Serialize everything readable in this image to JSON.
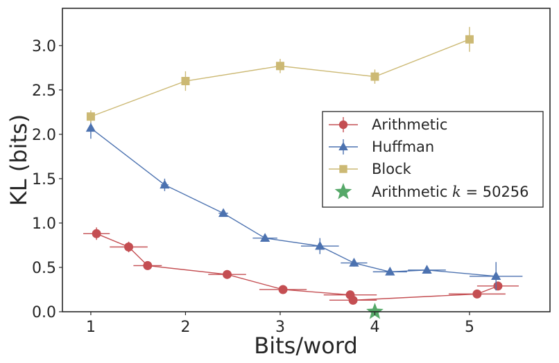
{
  "chart_data": {
    "type": "line",
    "xlabel": "Bits/word",
    "ylabel": "KL (bits)",
    "xlim": [
      0.7,
      5.85
    ],
    "ylim": [
      0.0,
      3.42
    ],
    "xticks": [
      1,
      2,
      3,
      4,
      5
    ],
    "yticks": [
      0.0,
      0.5,
      1.0,
      1.5,
      2.0,
      2.5,
      3.0
    ],
    "xtick_labels": [
      "1",
      "2",
      "3",
      "4",
      "5"
    ],
    "ytick_labels": [
      "0.0",
      "0.5",
      "1.0",
      "1.5",
      "2.0",
      "2.5",
      "3.0"
    ],
    "grid": false,
    "legend_position": "center-right",
    "series": [
      {
        "name": "Arithmetic",
        "color": "#c44e52",
        "marker": "circle",
        "points": [
          {
            "x": 1.06,
            "y": 0.88,
            "xerr": 0.14,
            "yerr": 0.07
          },
          {
            "x": 1.4,
            "y": 0.73,
            "xerr": 0.2,
            "yerr": 0.06
          },
          {
            "x": 1.6,
            "y": 0.52,
            "xerr": 0.15,
            "yerr": 0.03
          },
          {
            "x": 2.44,
            "y": 0.42,
            "xerr": 0.2,
            "yerr": 0.03
          },
          {
            "x": 3.03,
            "y": 0.25,
            "xerr": 0.25,
            "yerr": 0.02
          },
          {
            "x": 3.74,
            "y": 0.19,
            "xerr": 0.28,
            "yerr": 0.03
          },
          {
            "x": 3.77,
            "y": 0.13,
            "xerr": 0.25,
            "yerr": 0.02
          },
          {
            "x": 5.08,
            "y": 0.2,
            "xerr": 0.3,
            "yerr": 0.02
          },
          {
            "x": 5.3,
            "y": 0.29,
            "xerr": 0.22,
            "yerr": 0.02
          }
        ]
      },
      {
        "name": "Huffman",
        "color": "#4c72b0",
        "marker": "triangle",
        "points": [
          {
            "x": 1.0,
            "y": 2.07,
            "xerr": 0.03,
            "yerr": 0.12
          },
          {
            "x": 1.78,
            "y": 1.43,
            "xerr": 0.04,
            "yerr": 0.07
          },
          {
            "x": 2.4,
            "y": 1.11,
            "xerr": 0.05,
            "yerr": 0.04
          },
          {
            "x": 2.84,
            "y": 0.83,
            "xerr": 0.13,
            "yerr": 0.04
          },
          {
            "x": 3.42,
            "y": 0.74,
            "xerr": 0.2,
            "yerr": 0.09
          },
          {
            "x": 3.78,
            "y": 0.55,
            "xerr": 0.14,
            "yerr": 0.04
          },
          {
            "x": 4.16,
            "y": 0.45,
            "xerr": 0.18,
            "yerr": 0.02
          },
          {
            "x": 4.55,
            "y": 0.47,
            "xerr": 0.2,
            "yerr": 0.03
          },
          {
            "x": 5.28,
            "y": 0.4,
            "xerr": 0.28,
            "yerr": 0.16
          }
        ]
      },
      {
        "name": "Block",
        "color": "#ccb974",
        "marker": "square",
        "points": [
          {
            "x": 1.0,
            "y": 2.2,
            "xerr": 0.0,
            "yerr": 0.07
          },
          {
            "x": 2.0,
            "y": 2.6,
            "xerr": 0.0,
            "yerr": 0.11
          },
          {
            "x": 3.0,
            "y": 2.77,
            "xerr": 0.0,
            "yerr": 0.08
          },
          {
            "x": 4.0,
            "y": 2.65,
            "xerr": 0.0,
            "yerr": 0.08
          },
          {
            "x": 5.0,
            "y": 3.07,
            "xerr": 0.0,
            "yerr": 0.14
          }
        ]
      },
      {
        "name": "Arithmetic k = 50256",
        "color": "#55a868",
        "marker": "star",
        "points": [
          {
            "x": 4.0,
            "y": 0.0,
            "xerr": 0.0,
            "yerr": 0.0
          }
        ]
      }
    ],
    "legend": [
      {
        "label_text": "Arithmetic",
        "series_index": 0
      },
      {
        "label_text": "Huffman",
        "series_index": 1
      },
      {
        "label_text": "Block",
        "series_index": 2
      },
      {
        "label_text": "Arithmetic ",
        "label_math": "k",
        "label_suffix": " = 50256",
        "series_index": 3
      }
    ]
  }
}
